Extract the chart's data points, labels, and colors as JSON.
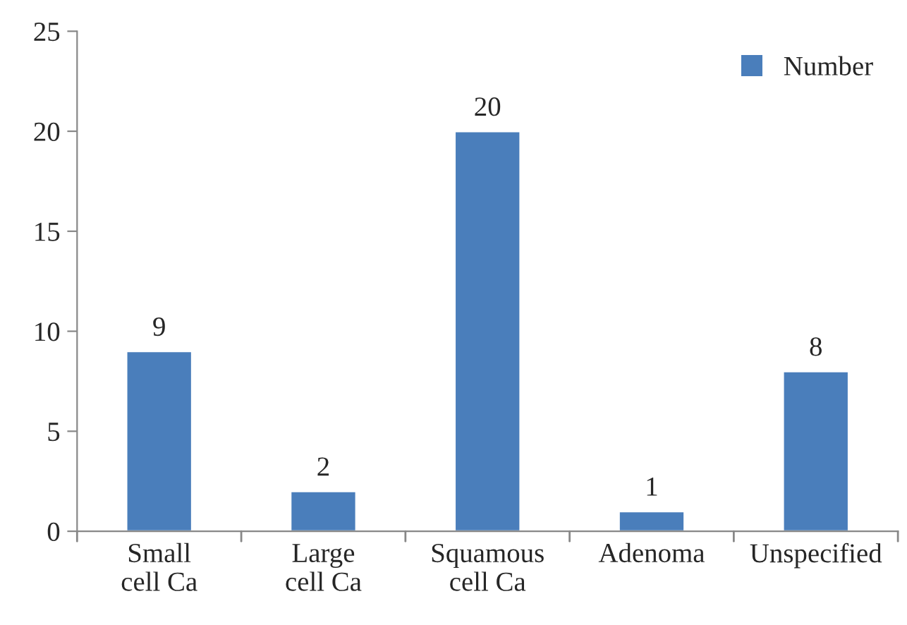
{
  "chart_data": {
    "type": "bar",
    "categories": [
      "Small\ncell Ca",
      "Large\ncell Ca",
      "Squamous\ncell Ca",
      "Adenoma",
      "Unspecified"
    ],
    "series": [
      {
        "name": "Number",
        "color": "#4a7ebb",
        "values": [
          9,
          2,
          20,
          1,
          8
        ]
      }
    ],
    "ylim": [
      0,
      25
    ],
    "yticks": [
      0,
      5,
      10,
      15,
      20,
      25
    ],
    "data_labels": true,
    "grid": false,
    "legend": "top right"
  }
}
